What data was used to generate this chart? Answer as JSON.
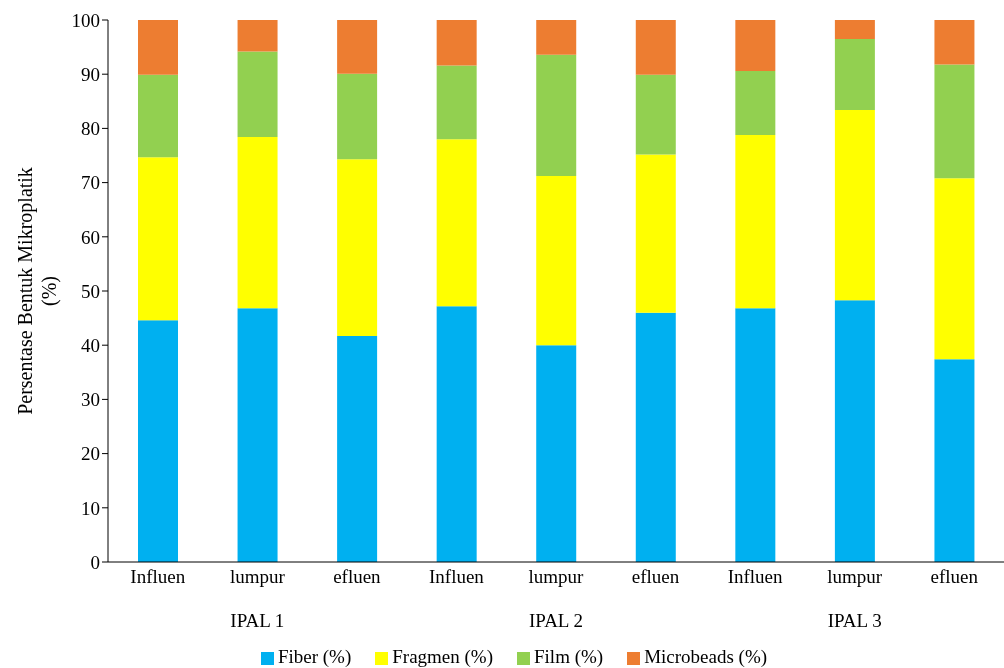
{
  "chart_data": {
    "type": "bar",
    "stacked": true,
    "ylabel": "Persentase Bentuk Mikroplatik (%)",
    "categories": [
      "Influen",
      "lumpur",
      "efluen",
      "Influen",
      "lumpur",
      "efluen",
      "Influen",
      "lumpur",
      "efluen"
    ],
    "annotations": [
      "IPAL 1",
      "IPAL 2",
      "IPAL 3"
    ],
    "series": [
      {
        "name": "Fiber (%)",
        "color": "#00b0f0",
        "values": [
          44.6,
          46.8,
          41.7,
          47.2,
          40.0,
          46.0,
          46.8,
          48.3,
          37.4
        ]
      },
      {
        "name": "Fragmen (%)",
        "color": "#ffff00",
        "values": [
          30.1,
          31.6,
          32.6,
          30.8,
          31.2,
          29.2,
          32.0,
          35.1,
          33.4
        ]
      },
      {
        "name": "Film (%)",
        "color": "#92d050",
        "values": [
          15.2,
          15.8,
          15.8,
          13.6,
          22.4,
          14.7,
          11.8,
          13.1,
          21.0
        ]
      },
      {
        "name": "Microbeads (%)",
        "color": "#ed7d31",
        "values": [
          10.1,
          5.8,
          9.9,
          8.4,
          6.4,
          10.1,
          9.4,
          3.5,
          8.2
        ]
      }
    ],
    "ylim": [
      0,
      100
    ],
    "yticks": [
      0,
      10,
      20,
      30,
      40,
      50,
      60,
      70,
      80,
      90,
      100
    ],
    "grid": false,
    "legend": "bottom"
  }
}
